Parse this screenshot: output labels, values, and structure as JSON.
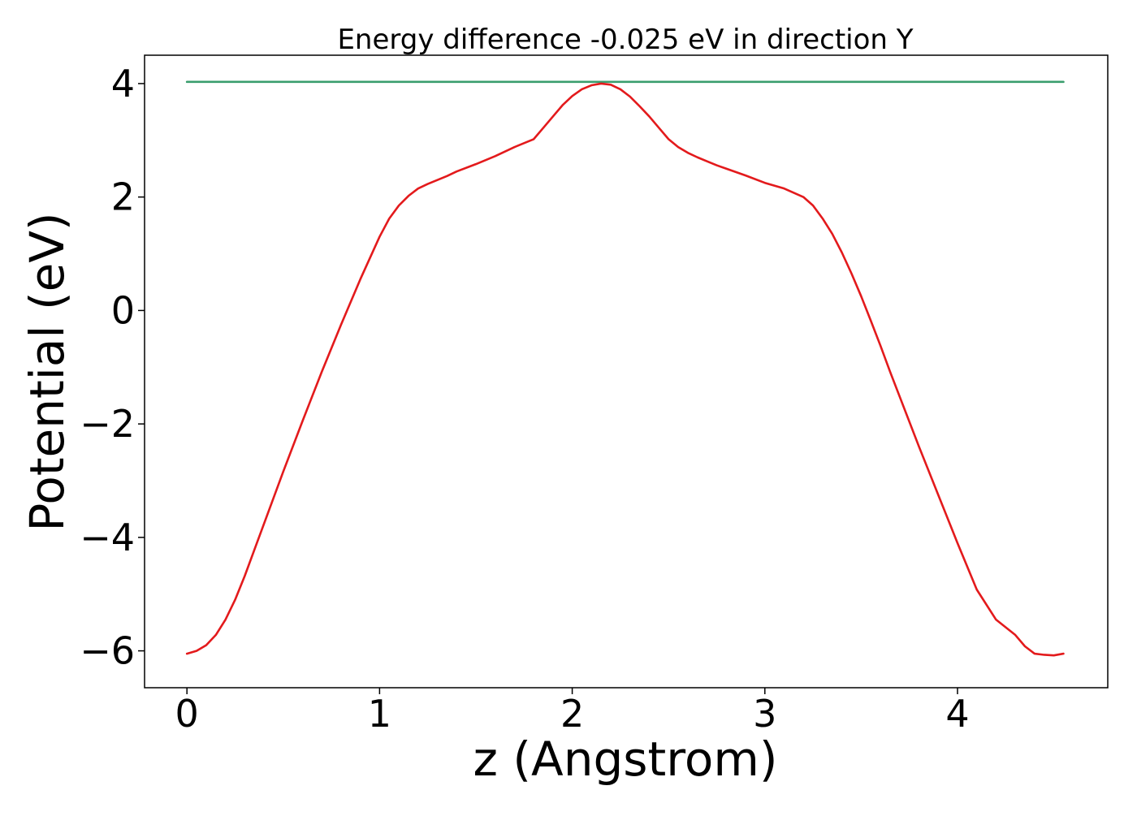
{
  "chart_data": {
    "type": "line",
    "title": "Energy difference -0.025 eV in direction Y",
    "xlabel": "z (Angstrom)",
    "ylabel": "Potential (eV)",
    "xlim": [
      -0.22,
      4.78
    ],
    "ylim": [
      -6.65,
      4.5
    ],
    "xticks": [
      0,
      1,
      2,
      3,
      4
    ],
    "xtick_labels": [
      "0",
      "1",
      "2",
      "3",
      "4"
    ],
    "yticks": [
      -6,
      -4,
      -2,
      0,
      2,
      4
    ],
    "ytick_labels": [
      "−6",
      "−4",
      "−2",
      "0",
      "2",
      "4"
    ],
    "grid": false,
    "series": [
      {
        "color": "#3a9e6e",
        "x": [
          0,
          4.55
        ],
        "y": [
          4.03,
          4.03
        ]
      },
      {
        "color": "#e31a1c",
        "x": [
          0,
          0.05,
          0.1,
          0.15,
          0.2,
          0.25,
          0.3,
          0.35,
          0.4,
          0.45,
          0.5,
          0.6,
          0.7,
          0.8,
          0.9,
          1.0,
          1.05,
          1.1,
          1.15,
          1.2,
          1.25,
          1.3,
          1.35,
          1.4,
          1.5,
          1.6,
          1.7,
          1.8,
          1.85,
          1.9,
          1.95,
          2.0,
          2.05,
          2.1,
          2.15,
          2.2,
          2.25,
          2.3,
          2.35,
          2.4,
          2.45,
          2.5,
          2.55,
          2.6,
          2.65,
          2.7,
          2.75,
          2.8,
          2.9,
          3.0,
          3.1,
          3.2,
          3.25,
          3.3,
          3.35,
          3.4,
          3.45,
          3.5,
          3.55,
          3.6,
          3.65,
          3.7,
          3.8,
          3.9,
          4.0,
          4.1,
          4.2,
          4.3,
          4.35,
          4.4,
          4.45,
          4.5,
          4.55
        ],
        "y": [
          -6.05,
          -6.0,
          -5.9,
          -5.72,
          -5.45,
          -5.1,
          -4.68,
          -4.22,
          -3.76,
          -3.3,
          -2.84,
          -1.95,
          -1.08,
          -0.25,
          0.55,
          1.3,
          1.62,
          1.85,
          2.02,
          2.15,
          2.23,
          2.3,
          2.37,
          2.45,
          2.58,
          2.72,
          2.88,
          3.02,
          3.22,
          3.42,
          3.62,
          3.78,
          3.9,
          3.97,
          4.0,
          3.98,
          3.9,
          3.77,
          3.6,
          3.42,
          3.22,
          3.02,
          2.88,
          2.78,
          2.7,
          2.63,
          2.56,
          2.5,
          2.38,
          2.25,
          2.15,
          2.0,
          1.85,
          1.62,
          1.35,
          1.02,
          0.65,
          0.25,
          -0.18,
          -0.62,
          -1.08,
          -1.52,
          -2.4,
          -3.25,
          -4.1,
          -4.92,
          -5.45,
          -5.72,
          -5.92,
          -6.05,
          -6.07,
          -6.08,
          -6.05
        ]
      }
    ]
  }
}
